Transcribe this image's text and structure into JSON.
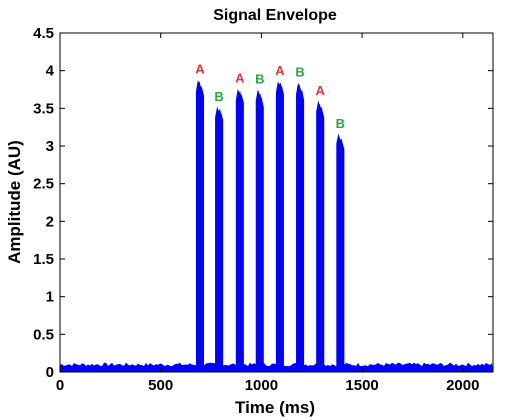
{
  "chart_data": {
    "type": "area",
    "title": "Signal Envelope",
    "xlabel": "Time (ms)",
    "ylabel": "Amplitude (AU)",
    "xlim": [
      0,
      2150
    ],
    "ylim": [
      0,
      4.5
    ],
    "x_ticks": [
      0,
      500,
      1000,
      1500,
      2000
    ],
    "y_ticks": [
      0,
      0.5,
      1,
      1.5,
      2,
      2.5,
      3,
      3.5,
      4,
      4.5
    ],
    "y_tick_labels": [
      "0",
      "0.5",
      "1",
      "1.5",
      "2",
      "2.5",
      "3",
      "3.5",
      "4",
      "4.5"
    ],
    "grid": false,
    "baseline_level": 0.1,
    "colors": {
      "signal": "#0000ff",
      "A": "#e8333a",
      "B": "#22aa44"
    },
    "bursts": [
      {
        "label": "A",
        "start": 675,
        "end": 715,
        "peak": 3.88,
        "end_level": 3.78
      },
      {
        "label": "B",
        "start": 770,
        "end": 810,
        "peak": 3.52,
        "end_level": 3.45
      },
      {
        "label": "A",
        "start": 873,
        "end": 913,
        "peak": 3.76,
        "end_level": 3.68
      },
      {
        "label": "B",
        "start": 972,
        "end": 1012,
        "peak": 3.75,
        "end_level": 3.62
      },
      {
        "label": "A",
        "start": 1072,
        "end": 1112,
        "peak": 3.86,
        "end_level": 3.8
      },
      {
        "label": "B",
        "start": 1172,
        "end": 1212,
        "peak": 3.84,
        "end_level": 3.72
      },
      {
        "label": "A",
        "start": 1272,
        "end": 1312,
        "peak": 3.6,
        "end_level": 3.48
      },
      {
        "label": "B",
        "start": 1372,
        "end": 1412,
        "peak": 3.16,
        "end_level": 3.05
      }
    ]
  }
}
